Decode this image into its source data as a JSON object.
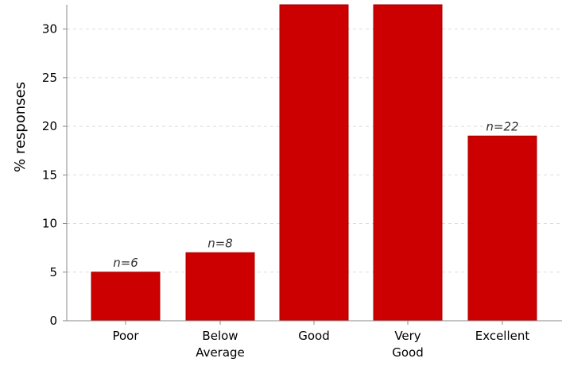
{
  "chart_data": {
    "type": "bar",
    "categories": [
      [
        "Poor"
      ],
      [
        "Below",
        "Average"
      ],
      [
        "Good"
      ],
      [
        "Very",
        "Good"
      ],
      [
        "Excellent"
      ]
    ],
    "values": [
      5,
      7,
      34,
      34,
      19
    ],
    "data_labels": [
      "n=6",
      "n=8",
      "",
      "",
      "n=22"
    ],
    "ylabel": "% responses",
    "yticks": [
      0,
      5,
      10,
      15,
      20,
      25,
      30
    ],
    "ylim": [
      0,
      32.5
    ],
    "grid": true,
    "bar_color": "#cc0000",
    "grid_color": "#dddddd",
    "axis_color": "#888888",
    "text_color": "#000000",
    "label_color": "#333333"
  }
}
